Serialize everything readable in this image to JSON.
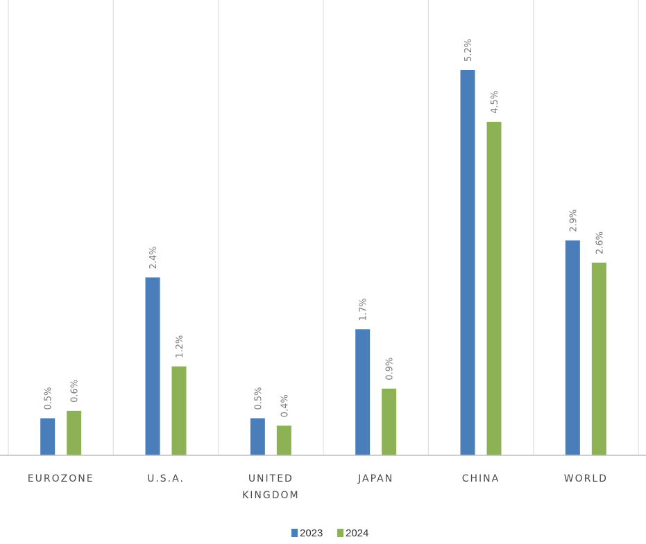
{
  "chart_data": {
    "type": "bar",
    "categories": [
      [
        "EUROZONE"
      ],
      [
        "U.S.A."
      ],
      [
        "UNITED",
        "KINGDOM"
      ],
      [
        "JAPAN"
      ],
      [
        "CHINA"
      ],
      [
        "WORLD"
      ]
    ],
    "series": [
      {
        "name": "2023",
        "color": "#4a7ebb",
        "values": [
          0.5,
          2.4,
          0.5,
          1.7,
          5.2,
          2.9
        ],
        "labels": [
          "0.5%",
          "2.4%",
          "0.5%",
          "1.7%",
          "5.2%",
          "2.9%"
        ]
      },
      {
        "name": "2024",
        "color": "#8db255",
        "values": [
          0.6,
          1.2,
          0.4,
          0.9,
          4.5,
          2.6
        ],
        "labels": [
          "0.6%",
          "1.2%",
          "0.4%",
          "0.9%",
          "4.5%",
          "2.6%"
        ]
      }
    ],
    "title": "",
    "xlabel": "",
    "ylabel": "",
    "ylim": [
      0,
      5.2
    ],
    "grid": "vertical-category-separators",
    "legend_position": "bottom-center"
  }
}
